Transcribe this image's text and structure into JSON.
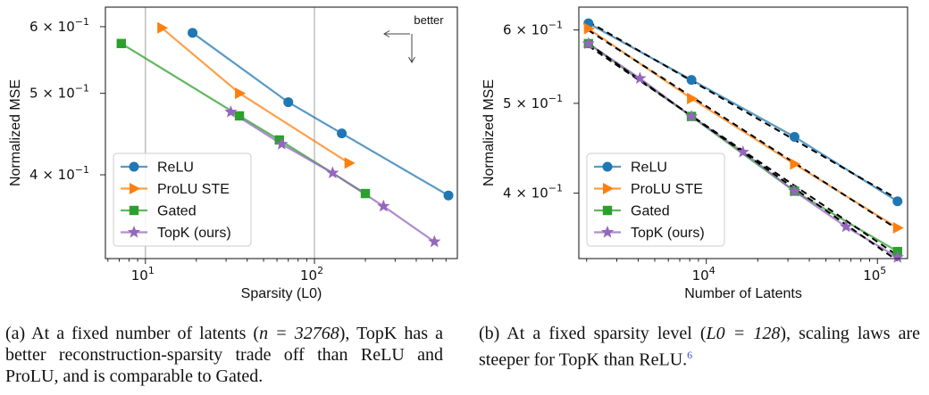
{
  "chart_data": [
    {
      "type": "line",
      "panel": "a",
      "xscale": "log",
      "yscale": "log",
      "xlabel": "Sparsity (L0)",
      "ylabel": "Normalized MSE",
      "xlim": [
        5.8,
        700
      ],
      "ylim": [
        0.318,
        0.633
      ],
      "x_ticks": [
        {
          "value": 10,
          "label": "10",
          "sup": "1"
        },
        {
          "value": 100,
          "label": "10",
          "sup": "2"
        }
      ],
      "y_ticks": [
        {
          "value": 0.6,
          "label": "6 × 10",
          "sup": "−1"
        },
        {
          "value": 0.5,
          "label": "5 × 10",
          "sup": "−1"
        },
        {
          "value": 0.4,
          "label": "4 × 10",
          "sup": "−1"
        }
      ],
      "vlines": [
        10,
        100
      ],
      "annotation": "better",
      "legend_position": "bottom-left",
      "series": [
        {
          "name": "ReLU",
          "color": "#1f77b4",
          "marker": "circle",
          "points": [
            [
              19,
              0.59
            ],
            [
              70,
              0.488
            ],
            [
              145,
              0.448
            ],
            [
              620,
              0.378
            ]
          ]
        },
        {
          "name": "ProLU STE",
          "color": "#ff7f0e",
          "marker": "triangle-right",
          "points": [
            [
              12.5,
              0.598
            ],
            [
              36,
              0.5
            ],
            [
              160,
              0.413
            ]
          ]
        },
        {
          "name": "Gated",
          "color": "#2ca02c",
          "marker": "square",
          "points": [
            [
              7.2,
              0.573
            ],
            [
              36,
              0.47
            ],
            [
              62,
              0.44
            ],
            [
              200,
              0.38
            ]
          ]
        },
        {
          "name": "TopK (ours)",
          "color": "#9467bd",
          "marker": "star",
          "points": [
            [
              32,
              0.475
            ],
            [
              64,
              0.435
            ],
            [
              128,
              0.402
            ],
            [
              256,
              0.367
            ],
            [
              512,
              0.333
            ]
          ]
        }
      ]
    },
    {
      "type": "line",
      "panel": "b",
      "xscale": "log",
      "yscale": "log",
      "xlabel": "Number of Latents",
      "ylabel": "Normalized MSE",
      "xlim": [
        1800,
        150000
      ],
      "ylim": [
        0.34,
        0.635
      ],
      "x_ticks": [
        {
          "value": 10000,
          "label": "10",
          "sup": "4"
        },
        {
          "value": 100000,
          "label": "10",
          "sup": "5"
        }
      ],
      "y_ticks": [
        {
          "value": 0.6,
          "label": "6 × 10",
          "sup": "−1"
        },
        {
          "value": 0.5,
          "label": "5 × 10",
          "sup": "−1"
        },
        {
          "value": 0.4,
          "label": "4 × 10",
          "sup": "−1"
        }
      ],
      "fit_lines_style": "black dashed",
      "legend_position": "bottom-left",
      "series": [
        {
          "name": "ReLU",
          "color": "#1f77b4",
          "marker": "circle",
          "points": [
            [
              2048,
              0.61
            ],
            [
              8192,
              0.53
            ],
            [
              32768,
              0.46
            ],
            [
              131072,
              0.392
            ]
          ]
        },
        {
          "name": "ProLU STE",
          "color": "#ff7f0e",
          "marker": "triangle-right",
          "points": [
            [
              2048,
              0.602
            ],
            [
              8192,
              0.506
            ],
            [
              32768,
              0.43
            ],
            [
              131072,
              0.367
            ]
          ]
        },
        {
          "name": "Gated",
          "color": "#2ca02c",
          "marker": "square",
          "points": [
            [
              2048,
              0.58
            ],
            [
              8192,
              0.484
            ],
            [
              32768,
              0.402
            ],
            [
              131072,
              0.346
            ]
          ]
        },
        {
          "name": "TopK (ours)",
          "color": "#9467bd",
          "marker": "star",
          "points": [
            [
              2048,
              0.58
            ],
            [
              4096,
              0.532
            ],
            [
              8192,
              0.484
            ],
            [
              16384,
              0.443
            ],
            [
              32768,
              0.402
            ],
            [
              65536,
              0.368
            ],
            [
              131072,
              0.341
            ]
          ]
        }
      ]
    }
  ],
  "captions": {
    "a": {
      "prefix": "(a) At a fixed number of latents (",
      "math": "n = 32768",
      "suffix": "), TopK has a better reconstruction-sparsity trade off than ReLU and ProLU, and is comparable to Gated."
    },
    "b": {
      "prefix": "(b) At a fixed sparsity level (",
      "math": "L0 = 128",
      "suffix": "), scaling laws are steeper for TopK than ReLU.",
      "footnote": "6"
    }
  }
}
